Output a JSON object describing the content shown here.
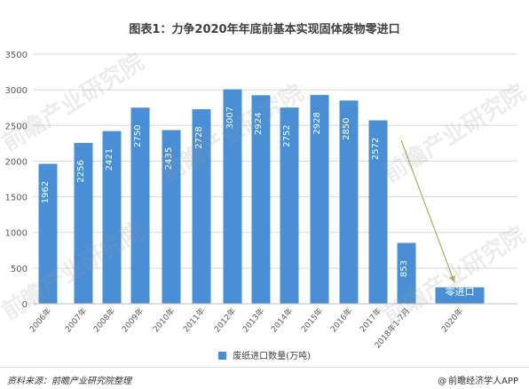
{
  "page": {
    "title": "图表1：力争2020年年底前基本实现固体废物零进口",
    "source_note": "资料来源：前瞻产业研究院整理",
    "brand_note": "前瞻经济学人APP",
    "brand_icon": "@",
    "watermark_text": "前瞻产业研究院"
  },
  "colors": {
    "bar": "#4a8fd6",
    "grid": "#d9d9d9",
    "axis_text": "#595959",
    "arrow": "#9bbb59",
    "background": "#ffffff"
  },
  "chart_data": {
    "type": "bar",
    "title": "图表1：力争2020年年底前基本实现固体废物零进口",
    "categories": [
      "2006年",
      "2007年",
      "2008年",
      "2009年",
      "2010年",
      "2011年",
      "2012年",
      "2013年",
      "2014年",
      "2015年",
      "2016年",
      "2017年",
      "2018年1-7月",
      "2020年"
    ],
    "series": [
      {
        "name": "废纸进口数量(万吨)",
        "values": [
          1962,
          2256,
          2421,
          2750,
          2435,
          2728,
          3007,
          2924,
          2752,
          2928,
          2850,
          2572,
          853,
          0
        ]
      }
    ],
    "data_labels": [
      "1962",
      "2256",
      "2421",
      "2750",
      "2435",
      "2728",
      "3007",
      "2924",
      "2752",
      "2928",
      "2850",
      "2572",
      "853",
      "零进口"
    ],
    "y_ticks": [
      0,
      500,
      1000,
      1500,
      2000,
      2500,
      3000,
      3500
    ],
    "ylim": [
      0,
      3500
    ],
    "xlabel": "",
    "ylabel": "",
    "grid": true,
    "legend_position": "bottom",
    "annotations": [
      {
        "type": "arrow",
        "from_category": "2017年",
        "to_category": "2020年"
      }
    ]
  }
}
